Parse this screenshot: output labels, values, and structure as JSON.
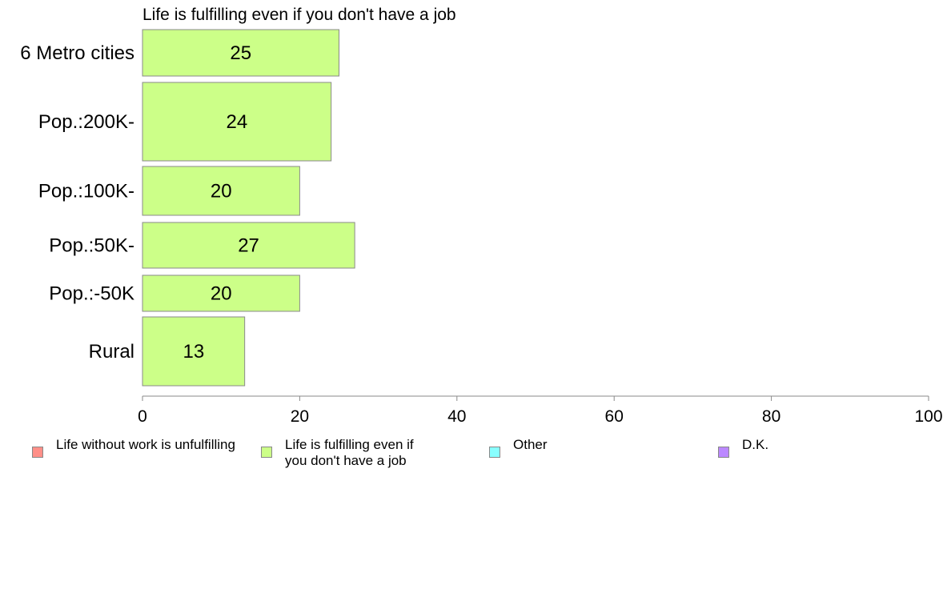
{
  "chart_data": {
    "type": "bar",
    "orientation": "horizontal",
    "title": "Life is fulfilling even if you don't have a job",
    "categories": [
      "6 Metro cities",
      "Pop.:200K-",
      "Pop.:100K-",
      "Pop.:50K-",
      "Pop.:-50K",
      "Rural"
    ],
    "series": [
      {
        "name": "Life is fulfilling even if you don't have a job",
        "values": [
          25,
          24,
          20,
          27,
          20,
          13
        ],
        "color": "#ccff88"
      }
    ],
    "xlim": [
      0,
      100
    ],
    "xticks": [
      0,
      20,
      40,
      60,
      80,
      100
    ],
    "grid": false,
    "legend_position": "bottom",
    "legend": [
      {
        "label": "Life without work is unfulfilling",
        "color": "#ff8f88"
      },
      {
        "label": "Life is fulfilling even if\nyou don't have a job",
        "color": "#ccff88"
      },
      {
        "label": "Other",
        "color": "#88ffff"
      },
      {
        "label": "D.K.",
        "color": "#bb88ff"
      }
    ]
  }
}
